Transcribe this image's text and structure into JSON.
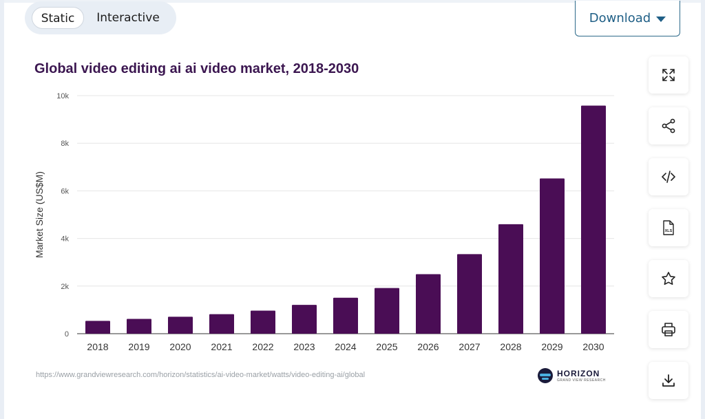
{
  "toolbar": {
    "static_label": "Static",
    "interactive_label": "Interactive",
    "download_label": "Download"
  },
  "side_actions": [
    "expand-icon",
    "share-icon",
    "embed-code-icon",
    "xls-file-icon",
    "star-icon",
    "print-icon",
    "download-icon"
  ],
  "xls_icon_text": "XLS",
  "source_url": "https://www.grandviewresearch.com/horizon/statistics/ai-video-market/watts/video-editing-ai/global",
  "logo": {
    "name": "HORIZON",
    "sub": "GRAND VIEW RESEARCH"
  },
  "colors": {
    "bar": "#4a0d55",
    "title": "#3b1650",
    "accent": "#1f5f86"
  },
  "chart_data": {
    "type": "bar",
    "title": "Global video editing ai ai video market, 2018-2030",
    "xlabel": "",
    "ylabel": "Market Size (US$M)",
    "categories": [
      "2018",
      "2019",
      "2020",
      "2021",
      "2022",
      "2023",
      "2024",
      "2025",
      "2026",
      "2027",
      "2028",
      "2029",
      "2030"
    ],
    "values": [
      540,
      620,
      710,
      820,
      970,
      1210,
      1510,
      1920,
      2500,
      3340,
      4600,
      6520,
      9580
    ],
    "ylim": [
      0,
      10000
    ],
    "yticks": [
      0,
      2000,
      4000,
      6000,
      8000,
      10000
    ],
    "ytick_labels": [
      "0",
      "2k",
      "4k",
      "6k",
      "8k",
      "10k"
    ],
    "grid": true,
    "legend": "none"
  }
}
